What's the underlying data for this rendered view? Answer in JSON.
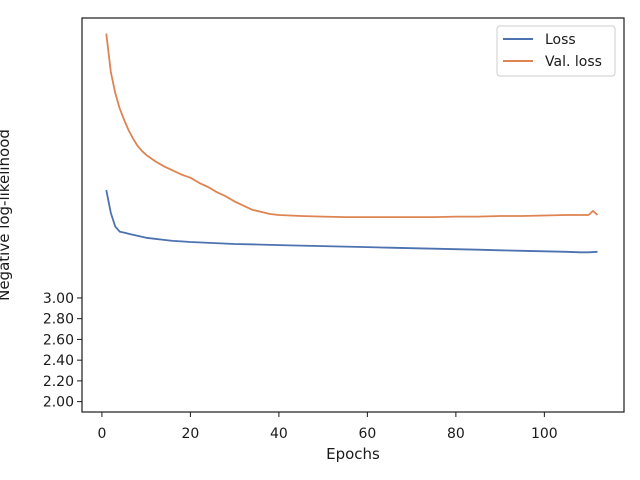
{
  "chart_data": {
    "type": "line",
    "title": "",
    "xlabel": "Epochs",
    "ylabel": "Negative log-likelihood",
    "xlim": [
      -4.5,
      118
    ],
    "ylim": [
      1.9,
      5.7
    ],
    "xticks": [
      0,
      20,
      40,
      60,
      80,
      100
    ],
    "yticks": [
      2.0,
      2.2,
      2.4,
      2.6,
      2.8,
      3.0
    ],
    "legend": {
      "placement": "top-right"
    },
    "grid": false,
    "series": [
      {
        "name": "Loss",
        "color": "#4c72b0",
        "x": [
          1,
          2,
          3,
          4,
          5,
          6,
          7,
          8,
          9,
          10,
          12,
          14,
          16,
          18,
          20,
          25,
          30,
          35,
          40,
          45,
          50,
          55,
          60,
          65,
          70,
          75,
          80,
          85,
          90,
          95,
          100,
          105,
          108,
          110,
          112
        ],
        "y": [
          4.04,
          3.82,
          3.69,
          3.64,
          3.63,
          3.62,
          3.61,
          3.6,
          3.59,
          3.58,
          3.57,
          3.56,
          3.55,
          3.545,
          3.54,
          3.53,
          3.52,
          3.515,
          3.51,
          3.505,
          3.5,
          3.495,
          3.49,
          3.485,
          3.48,
          3.475,
          3.47,
          3.465,
          3.46,
          3.455,
          3.45,
          3.445,
          3.44,
          3.44,
          3.445
        ]
      },
      {
        "name": "Val. loss",
        "color": "#dd8452",
        "x": [
          1,
          2,
          3,
          4,
          5,
          6,
          7,
          8,
          9,
          10,
          12,
          14,
          16,
          18,
          20,
          22,
          24,
          26,
          28,
          30,
          32,
          34,
          36,
          38,
          40,
          45,
          50,
          55,
          60,
          65,
          70,
          75,
          80,
          85,
          90,
          95,
          100,
          105,
          110,
          111,
          112
        ],
        "y": [
          5.55,
          5.18,
          4.98,
          4.83,
          4.72,
          4.62,
          4.54,
          4.47,
          4.42,
          4.38,
          4.32,
          4.27,
          4.23,
          4.19,
          4.16,
          4.11,
          4.07,
          4.02,
          3.98,
          3.93,
          3.89,
          3.85,
          3.83,
          3.81,
          3.8,
          3.79,
          3.785,
          3.78,
          3.78,
          3.78,
          3.78,
          3.78,
          3.785,
          3.785,
          3.79,
          3.79,
          3.795,
          3.8,
          3.8,
          3.84,
          3.8
        ]
      }
    ]
  }
}
